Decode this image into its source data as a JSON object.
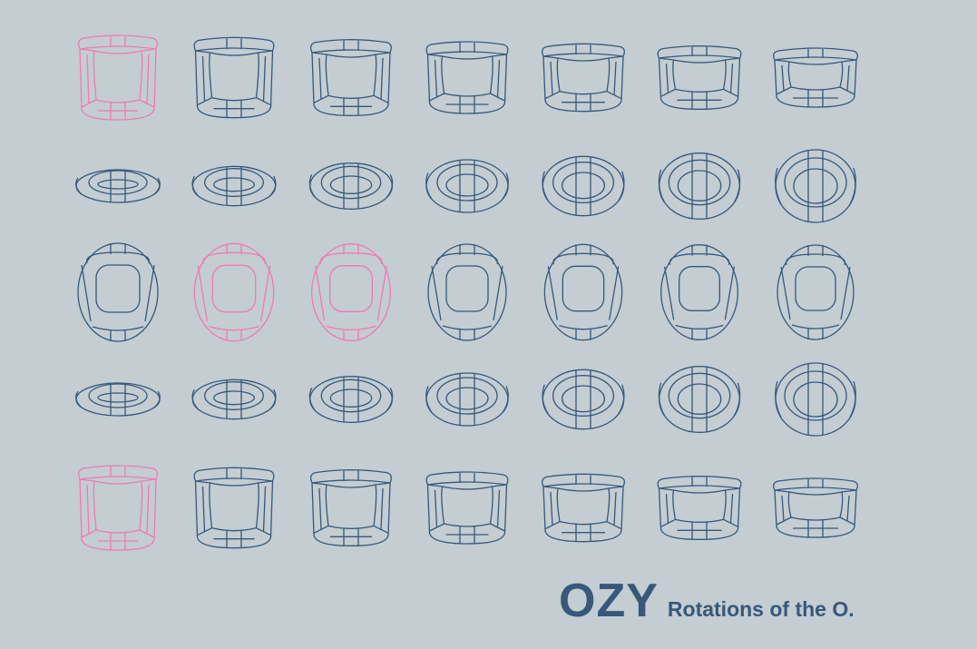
{
  "colors": {
    "background": "#c3cdd2",
    "line": "#37587a",
    "highlight": "#f07ab3"
  },
  "caption": {
    "title": "OZY",
    "subtitle": "Rotations of the O."
  },
  "grid": {
    "rows": [
      {
        "view": "front",
        "highlighted": [
          0
        ]
      },
      {
        "view": "top",
        "highlighted": []
      },
      {
        "view": "upright",
        "highlighted": [
          1,
          2
        ]
      },
      {
        "view": "top",
        "highlighted": []
      },
      {
        "view": "front",
        "highlighted": [
          0
        ]
      }
    ]
  }
}
